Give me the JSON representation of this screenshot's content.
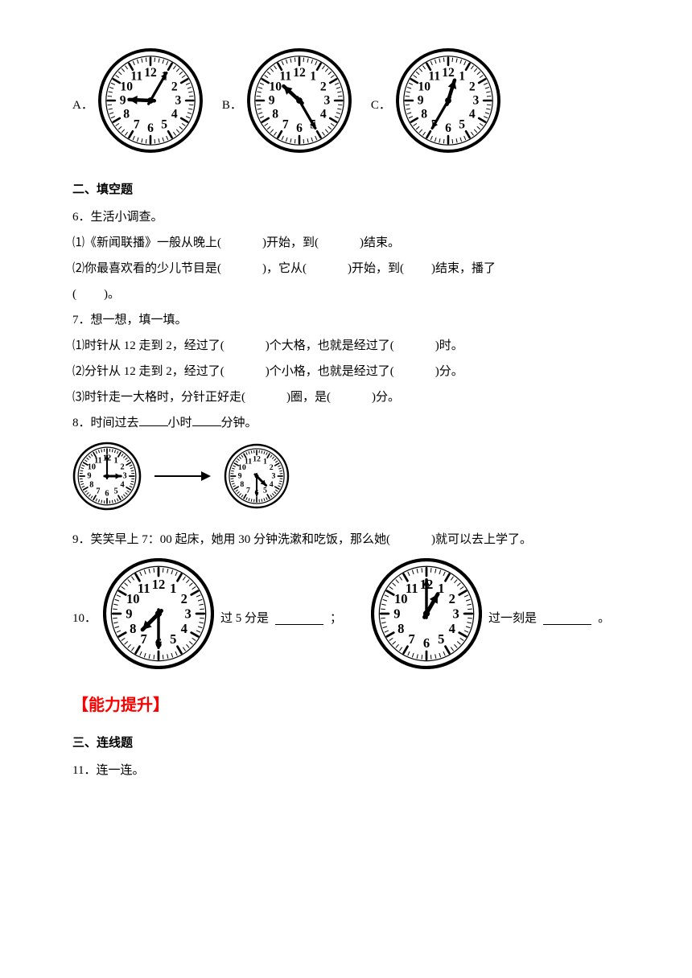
{
  "topClocks": {
    "labels": {
      "a": "A．",
      "b": "B．",
      "c": "C．"
    },
    "face": {
      "size": 130,
      "outer_color": "#000000",
      "num_color": "#000000",
      "tick_color": "#000000",
      "hand_color": "#000000",
      "bg": "#ffffff"
    },
    "times": {
      "a": {
        "hour": 9,
        "minute": 5
      },
      "b": {
        "hour": 10,
        "minute": 25
      },
      "c": {
        "hour": 12,
        "minute": 35
      }
    }
  },
  "section2": {
    "title": "二、填空题"
  },
  "q6": {
    "num": "6．生活小调查。",
    "line1_a": "⑴《新闻联播》一般从晚上(",
    "line1_b": ")开始，到(",
    "line1_c": ")结束。",
    "line2_a": "⑵你最喜欢看的少儿节目是(",
    "line2_b": ")，它从(",
    "line2_c": ")开始，到(",
    "line2_d": ")结束，播了",
    "line3_a": "(",
    "line3_b": ")。"
  },
  "q7": {
    "num": "7．想一想，填一填。",
    "l1a": "⑴时针从 12 走到 2，经过了(",
    "l1b": ")个大格，也就是经过了(",
    "l1c": ")时。",
    "l2a": "⑵分针从 12 走到 2，经过了(",
    "l2b": ")个小格，也就是经过了(",
    "l2c": ")分。",
    "l3a": "⑶时针走一大格时，分针正好走(",
    "l3b": ")圈，是(",
    "l3c": ")分。"
  },
  "q8": {
    "pre": "8．时间过去",
    "mid1": "小时",
    "mid2": "分钟。",
    "clock1": {
      "hour": 3,
      "minute": 0,
      "size": 86
    },
    "clock2": {
      "hour": 4,
      "minute": 30,
      "size": 82
    },
    "arrow": {
      "length": 70,
      "color": "#000000"
    }
  },
  "q9": {
    "text": "9．笑笑早上 7：00 起床，她用 30 分钟洗漱和吃饭，那么她(",
    "tail": ")就可以去上学了。"
  },
  "q10": {
    "num": "10．",
    "clock1": {
      "hour": 7,
      "minute": 30,
      "size": 138
    },
    "mid1": "过 5 分是",
    "semi": "；",
    "clock2": {
      "hour": 1,
      "minute": 0,
      "size": 138
    },
    "mid2": "过一刻是",
    "period": "。"
  },
  "accent": {
    "text": "能力提升"
  },
  "section3": {
    "title": "三、连线题"
  },
  "q11": {
    "text": "11．连一连。"
  },
  "blank": "　　　",
  "blank_short": "　　"
}
